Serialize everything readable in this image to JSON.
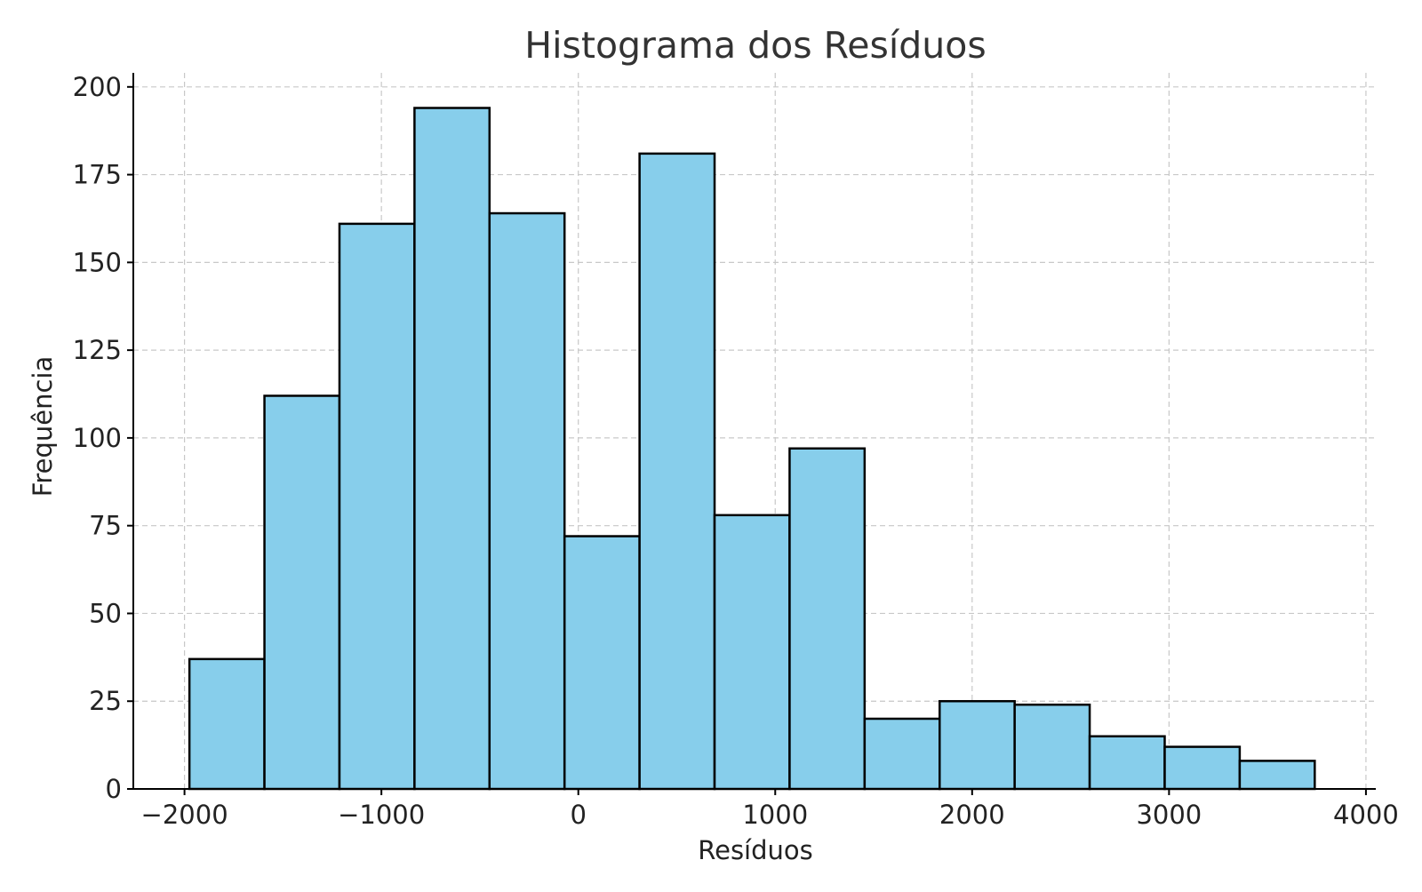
{
  "chart_data": {
    "type": "bar",
    "title": "Histograma dos Resíduos",
    "xlabel": "Resíduos",
    "ylabel": "Frequência",
    "xlim": [
      -2260,
      4050
    ],
    "ylim": [
      0,
      204
    ],
    "xticks": [
      -2000,
      -1000,
      0,
      1000,
      2000,
      3000,
      4000
    ],
    "xtick_labels": [
      "−2000",
      "−1000",
      "0",
      "1000",
      "2000",
      "3000",
      "4000"
    ],
    "yticks": [
      0,
      25,
      50,
      75,
      100,
      125,
      150,
      175,
      200
    ],
    "grid": true,
    "bar_color": "#87CEEB",
    "edge_color": "#000000",
    "bins": [
      {
        "x0": -1975,
        "x1": -1594,
        "count": 37
      },
      {
        "x0": -1594,
        "x1": -1213,
        "count": 112
      },
      {
        "x0": -1213,
        "x1": -832,
        "count": 161
      },
      {
        "x0": -832,
        "x1": -451,
        "count": 194
      },
      {
        "x0": -451,
        "x1": -70,
        "count": 164
      },
      {
        "x0": -70,
        "x1": 311,
        "count": 72
      },
      {
        "x0": 311,
        "x1": 692,
        "count": 181
      },
      {
        "x0": 692,
        "x1": 1073,
        "count": 78
      },
      {
        "x0": 1073,
        "x1": 1454,
        "count": 97
      },
      {
        "x0": 1454,
        "x1": 1835,
        "count": 20
      },
      {
        "x0": 1835,
        "x1": 2216,
        "count": 25
      },
      {
        "x0": 2216,
        "x1": 2597,
        "count": 24
      },
      {
        "x0": 2597,
        "x1": 2978,
        "count": 15
      },
      {
        "x0": 2978,
        "x1": 3359,
        "count": 12
      },
      {
        "x0": 3359,
        "x1": 3740,
        "count": 8
      }
    ]
  }
}
